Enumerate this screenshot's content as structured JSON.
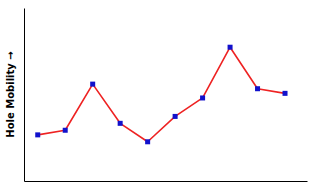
{
  "chart_data": {
    "type": "line",
    "ylabel": "Hole Mobility →",
    "x": [
      0,
      1,
      2,
      3,
      4,
      5,
      6,
      7,
      8,
      9
    ],
    "series": [
      {
        "values": [
          0.5,
          0.52,
          0.72,
          0.55,
          0.47,
          0.58,
          0.66,
          0.88,
          0.7,
          0.68
        ],
        "color": "#ee2222",
        "marker": "square",
        "colors": [
          "#1111cc",
          "#1111cc",
          "#1111cc",
          "#1111cc",
          "#1111cc",
          "#1111cc",
          "#1111cc",
          "#1111cc",
          "#1111cc",
          "#1111cc"
        ]
      }
    ],
    "xlim": [
      -0.5,
      9.8
    ],
    "ylim": [
      0.3,
      1.05
    ],
    "tick_labels": false,
    "grid": false
  }
}
